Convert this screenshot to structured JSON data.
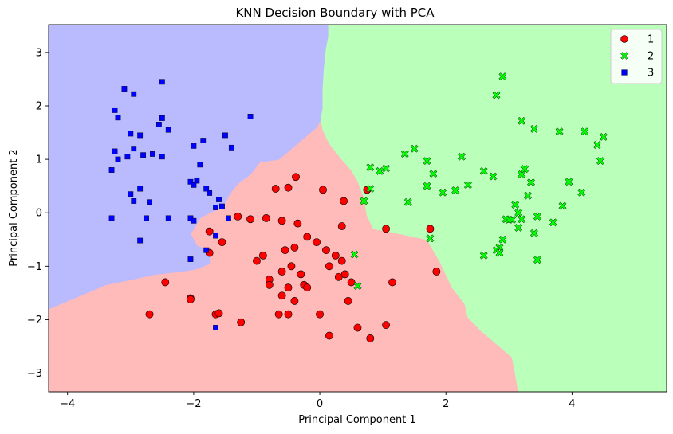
{
  "chart_data": {
    "type": "scatter",
    "title": "KNN Decision Boundary with PCA",
    "xlabel": "Principal Component 1",
    "ylabel": "Principal Component 2",
    "xlim": [
      -4.3,
      5.5
    ],
    "ylim": [
      -3.35,
      3.52
    ],
    "xticks": [
      -4,
      -2,
      0,
      2,
      4
    ],
    "yticks": [
      -3,
      -2,
      -1,
      0,
      1,
      2,
      3
    ],
    "grid": false,
    "legend_position": "top-right",
    "regions": [
      {
        "class": "3",
        "color": "#babaff",
        "polygon": [
          [
            -4.3,
            3.52
          ],
          [
            0.14,
            3.52
          ],
          [
            0.14,
            3.3
          ],
          [
            0.1,
            3.05
          ],
          [
            0.07,
            2.7
          ],
          [
            0.05,
            2.3
          ],
          [
            0.05,
            1.95
          ],
          [
            0.02,
            1.75
          ],
          [
            -0.05,
            1.6
          ],
          [
            -0.2,
            1.45
          ],
          [
            -0.4,
            1.25
          ],
          [
            -0.65,
            1.0
          ],
          [
            -0.95,
            0.95
          ],
          [
            -1.1,
            0.72
          ],
          [
            -1.3,
            0.55
          ],
          [
            -1.4,
            0.4
          ],
          [
            -1.55,
            0.1
          ],
          [
            -1.75,
            0.0
          ],
          [
            -1.9,
            -0.1
          ],
          [
            -2.05,
            -0.4
          ],
          [
            -1.95,
            -0.62
          ],
          [
            -1.75,
            -0.72
          ],
          [
            -1.75,
            -0.95
          ],
          [
            -1.95,
            -1.05
          ],
          [
            -2.2,
            -1.1
          ],
          [
            -2.6,
            -1.15
          ],
          [
            -3.0,
            -1.25
          ],
          [
            -3.4,
            -1.35
          ],
          [
            -3.8,
            -1.55
          ],
          [
            -4.3,
            -1.8
          ]
        ]
      },
      {
        "class": "2",
        "color": "#baffba",
        "polygon": [
          [
            0.14,
            3.52
          ],
          [
            5.5,
            3.52
          ],
          [
            5.5,
            -3.35
          ],
          [
            3.15,
            -3.35
          ],
          [
            3.1,
            -3.0
          ],
          [
            3.05,
            -2.7
          ],
          [
            2.8,
            -2.45
          ],
          [
            2.55,
            -2.2
          ],
          [
            2.35,
            -1.95
          ],
          [
            2.3,
            -1.7
          ],
          [
            2.1,
            -1.4
          ],
          [
            1.9,
            -0.9
          ],
          [
            1.7,
            -0.5
          ],
          [
            1.1,
            -0.35
          ],
          [
            0.85,
            -0.3
          ],
          [
            0.75,
            -0.05
          ],
          [
            0.7,
            0.3
          ],
          [
            0.6,
            0.6
          ],
          [
            0.5,
            0.8
          ],
          [
            0.35,
            1.0
          ],
          [
            0.15,
            1.3
          ],
          [
            0.05,
            1.55
          ],
          [
            0.02,
            1.75
          ],
          [
            0.05,
            1.95
          ],
          [
            0.05,
            2.3
          ],
          [
            0.07,
            2.7
          ],
          [
            0.1,
            3.05
          ],
          [
            0.14,
            3.3
          ]
        ]
      }
    ],
    "background_region": {
      "class": "1",
      "color": "#ffbaba"
    },
    "series": [
      {
        "name": "1",
        "marker": "circle",
        "color": "#ff0000",
        "points": [
          [
            -0.7,
            0.45
          ],
          [
            -0.5,
            0.47
          ],
          [
            -0.38,
            0.67
          ],
          [
            0.05,
            0.43
          ],
          [
            0.38,
            0.22
          ],
          [
            0.75,
            0.43
          ],
          [
            -0.6,
            -0.15
          ],
          [
            -0.35,
            -0.2
          ],
          [
            -0.85,
            -0.1
          ],
          [
            -1.3,
            -0.07
          ],
          [
            -1.1,
            -0.12
          ],
          [
            0.35,
            -0.25
          ],
          [
            -0.2,
            -0.45
          ],
          [
            -0.05,
            -0.55
          ],
          [
            0.1,
            -0.7
          ],
          [
            -0.4,
            -0.65
          ],
          [
            -0.55,
            -0.7
          ],
          [
            1.05,
            -0.3
          ],
          [
            1.75,
            -0.3
          ],
          [
            -1.0,
            -0.9
          ],
          [
            -0.6,
            -1.1
          ],
          [
            -0.45,
            -1.0
          ],
          [
            -0.3,
            -1.15
          ],
          [
            0.25,
            -0.8
          ],
          [
            0.35,
            -0.9
          ],
          [
            0.15,
            -1.0
          ],
          [
            -0.8,
            -1.25
          ],
          [
            -0.8,
            -1.35
          ],
          [
            -0.5,
            -1.4
          ],
          [
            -0.25,
            -1.35
          ],
          [
            0.3,
            -1.2
          ],
          [
            0.4,
            -1.15
          ],
          [
            0.5,
            -1.3
          ],
          [
            1.15,
            -1.3
          ],
          [
            1.85,
            -1.1
          ],
          [
            -0.6,
            -1.55
          ],
          [
            -0.4,
            -1.65
          ],
          [
            0.45,
            -1.65
          ],
          [
            -0.65,
            -1.9
          ],
          [
            -0.5,
            -1.9
          ],
          [
            0.0,
            -1.9
          ],
          [
            -0.2,
            -1.4
          ],
          [
            0.6,
            -2.15
          ],
          [
            0.15,
            -2.3
          ],
          [
            0.8,
            -2.35
          ],
          [
            1.05,
            -2.1
          ],
          [
            -1.55,
            -0.55
          ],
          [
            -1.75,
            -0.35
          ],
          [
            -1.75,
            -0.75
          ],
          [
            -2.45,
            -1.3
          ],
          [
            -2.05,
            -1.6
          ],
          [
            -2.05,
            -1.62
          ],
          [
            -1.65,
            -1.9
          ],
          [
            -1.6,
            -1.88
          ],
          [
            -2.7,
            -1.9
          ],
          [
            -1.25,
            -2.05
          ],
          [
            -0.9,
            -0.8
          ]
        ]
      },
      {
        "name": "2",
        "marker": "x",
        "color": "#00ff00",
        "points": [
          [
            2.9,
            2.55
          ],
          [
            2.8,
            2.2
          ],
          [
            3.2,
            1.72
          ],
          [
            3.4,
            1.57
          ],
          [
            3.8,
            1.52
          ],
          [
            4.2,
            1.52
          ],
          [
            4.5,
            1.42
          ],
          [
            4.4,
            1.27
          ],
          [
            4.45,
            0.97
          ],
          [
            1.5,
            1.2
          ],
          [
            1.35,
            1.1
          ],
          [
            1.7,
            0.97
          ],
          [
            2.25,
            1.05
          ],
          [
            0.8,
            0.85
          ],
          [
            0.95,
            0.78
          ],
          [
            1.05,
            0.83
          ],
          [
            1.8,
            0.73
          ],
          [
            2.6,
            0.78
          ],
          [
            2.75,
            0.68
          ],
          [
            3.2,
            0.72
          ],
          [
            3.25,
            0.82
          ],
          [
            3.35,
            0.57
          ],
          [
            1.95,
            0.38
          ],
          [
            2.15,
            0.42
          ],
          [
            2.35,
            0.52
          ],
          [
            1.7,
            0.5
          ],
          [
            0.8,
            0.45
          ],
          [
            3.3,
            0.32
          ],
          [
            3.95,
            0.58
          ],
          [
            4.15,
            0.38
          ],
          [
            3.1,
            0.15
          ],
          [
            3.15,
            0.0
          ],
          [
            3.85,
            0.13
          ],
          [
            2.95,
            -0.12
          ],
          [
            3.0,
            -0.13
          ],
          [
            3.05,
            -0.13
          ],
          [
            3.2,
            -0.12
          ],
          [
            3.45,
            -0.07
          ],
          [
            3.15,
            -0.28
          ],
          [
            3.7,
            -0.18
          ],
          [
            3.4,
            -0.38
          ],
          [
            2.9,
            -0.5
          ],
          [
            2.85,
            -0.65
          ],
          [
            2.8,
            -0.7
          ],
          [
            2.85,
            -0.75
          ],
          [
            2.6,
            -0.8
          ],
          [
            3.45,
            -0.88
          ],
          [
            1.75,
            -0.48
          ],
          [
            1.4,
            0.2
          ],
          [
            0.7,
            0.22
          ],
          [
            0.55,
            -0.78
          ],
          [
            0.6,
            -1.37
          ]
        ]
      },
      {
        "name": "3",
        "marker": "square",
        "color": "#0000ff",
        "points": [
          [
            -3.1,
            2.32
          ],
          [
            -2.95,
            2.22
          ],
          [
            -2.5,
            2.45
          ],
          [
            -3.25,
            1.92
          ],
          [
            -3.2,
            1.78
          ],
          [
            -2.5,
            1.77
          ],
          [
            -2.55,
            1.65
          ],
          [
            -2.4,
            1.55
          ],
          [
            -1.1,
            1.8
          ],
          [
            -3.0,
            1.48
          ],
          [
            -2.85,
            1.45
          ],
          [
            -1.5,
            1.45
          ],
          [
            -3.25,
            1.15
          ],
          [
            -3.05,
            1.05
          ],
          [
            -2.8,
            1.08
          ],
          [
            -2.65,
            1.1
          ],
          [
            -2.5,
            1.05
          ],
          [
            -2.95,
            1.2
          ],
          [
            -2.0,
            1.25
          ],
          [
            -1.85,
            1.35
          ],
          [
            -1.4,
            1.22
          ],
          [
            -3.3,
            0.8
          ],
          [
            -3.2,
            1.0
          ],
          [
            -1.9,
            0.9
          ],
          [
            -2.05,
            0.58
          ],
          [
            -1.95,
            0.6
          ],
          [
            -2.0,
            0.52
          ],
          [
            -1.8,
            0.45
          ],
          [
            -2.85,
            0.45
          ],
          [
            -3.0,
            0.35
          ],
          [
            -2.95,
            0.22
          ],
          [
            -2.7,
            0.2
          ],
          [
            -1.75,
            0.37
          ],
          [
            -1.6,
            0.25
          ],
          [
            -1.55,
            0.12
          ],
          [
            -1.65,
            0.1
          ],
          [
            -3.3,
            -0.1
          ],
          [
            -2.75,
            -0.1
          ],
          [
            -2.4,
            -0.1
          ],
          [
            -2.05,
            -0.1
          ],
          [
            -2.0,
            -0.15
          ],
          [
            -1.45,
            -0.1
          ],
          [
            -2.85,
            -0.52
          ],
          [
            -1.65,
            -0.43
          ],
          [
            -1.8,
            -0.7
          ],
          [
            -2.05,
            -0.87
          ],
          [
            -1.65,
            -2.15
          ]
        ]
      }
    ]
  }
}
